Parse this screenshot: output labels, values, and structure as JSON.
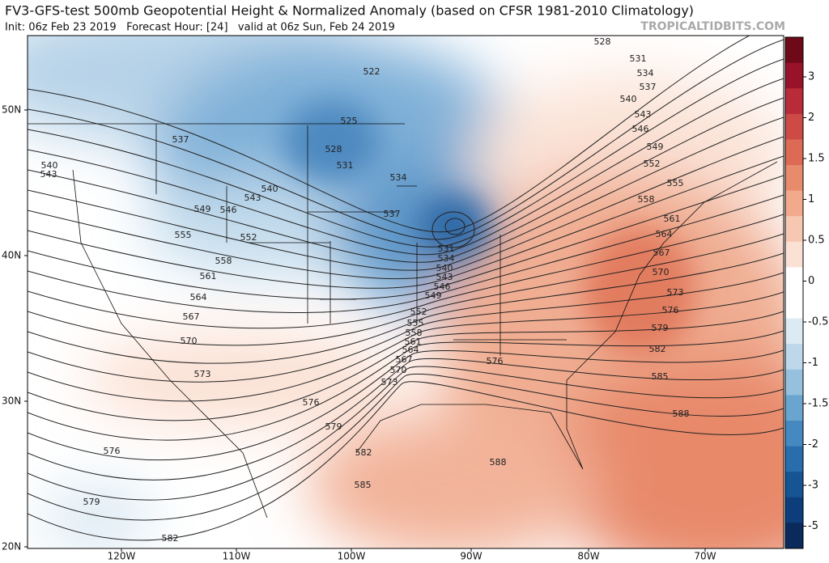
{
  "header": {
    "title": "FV3-GFS-test 500mb Geopotential Height & Normalized Anomaly (based on CFSR 1981-2010 Climatology)",
    "subtitle": "Init: 06z Feb 23 2019   Forecast Hour: [24]   valid at 06z Sun, Feb 24 2019",
    "brand": "TROPICALTIDBITS.COM"
  },
  "map": {
    "lat_labels": [
      "50N",
      "40N",
      "30N",
      "20N"
    ],
    "lon_labels": [
      "120W",
      "110W",
      "100W",
      "90W",
      "80W",
      "70W"
    ],
    "contour_labels": [
      528,
      531,
      534,
      537,
      540,
      543,
      546,
      549,
      552,
      555,
      558,
      561,
      564,
      567,
      570,
      573,
      576,
      579,
      582,
      585,
      588,
      588,
      576,
      573,
      570,
      567,
      564,
      561,
      558,
      555,
      552,
      549,
      546,
      543,
      540,
      534,
      531,
      537,
      534,
      531,
      528,
      525,
      522,
      537,
      540,
      543,
      540,
      543,
      546,
      549,
      552,
      555,
      558,
      561,
      564,
      567,
      570,
      573,
      576,
      579,
      582,
      585,
      576,
      579,
      582
    ]
  },
  "colorbar": {
    "ticks": [
      3,
      2,
      1.5,
      1,
      0.5,
      0,
      -0.5,
      -1,
      -1.5,
      -2,
      -3,
      -5
    ],
    "colors": [
      "#6e0a17",
      "#98122a",
      "#b92b38",
      "#cd4a45",
      "#dc6a55",
      "#e88a6c",
      "#f2aa8d",
      "#f7c8b1",
      "#fbe1d4",
      "#ffffff",
      "#ffffff",
      "#dceaf3",
      "#bcd8ea",
      "#95c1de",
      "#6aa5cf",
      "#4689c0",
      "#2a6dac",
      "#165494",
      "#0d3d7a",
      "#0a2a5c"
    ]
  }
}
